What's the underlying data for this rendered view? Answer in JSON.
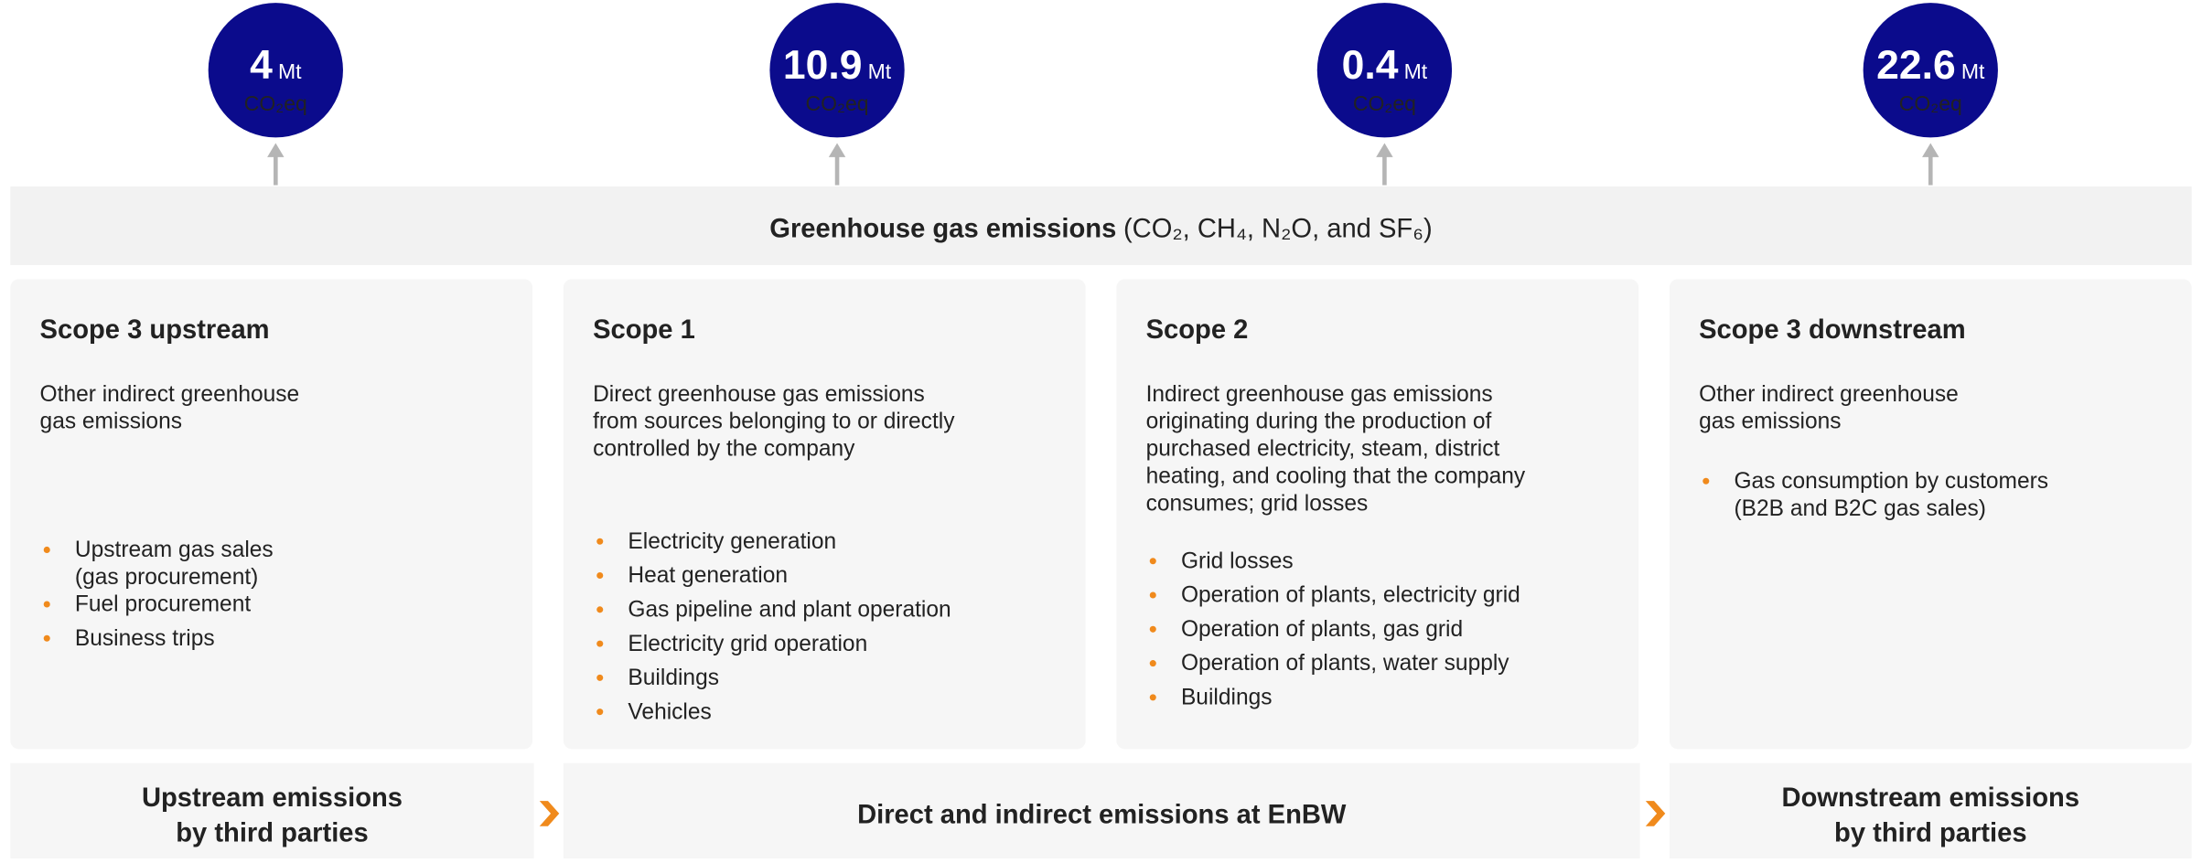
{
  "circles": [
    {
      "value": 4,
      "unit": "Mt",
      "label": "CO₂eq"
    },
    {
      "value": 10.9,
      "unit": "Mt",
      "label": "CO₂eq"
    },
    {
      "value": 0.4,
      "unit": "Mt",
      "label": "CO₂eq"
    },
    {
      "value": 22.6,
      "unit": "Mt",
      "label": "CO₂eq"
    }
  ],
  "banner": {
    "title": "Greenhouse gas emissions",
    "detail": "(CO₂, CH₄, N₂O, and SF₆)"
  },
  "scopes": [
    {
      "title": "Scope 3 upstream",
      "description": [
        "Other indirect greenhouse",
        "gas emissions"
      ],
      "bullets": [
        [
          "Upstream gas sales",
          "(gas procurement)"
        ],
        [
          "Fuel procurement"
        ],
        [
          "Business trips"
        ]
      ]
    },
    {
      "title": "Scope 1",
      "description": [
        "Direct greenhouse gas emissions",
        "from sources belonging to or directly",
        "controlled by the company"
      ],
      "bullets": [
        [
          "Electricity generation"
        ],
        [
          "Heat generation"
        ],
        [
          "Gas pipeline and plant operation"
        ],
        [
          "Electricity grid operation"
        ],
        [
          "Buildings"
        ],
        [
          "Vehicles"
        ]
      ]
    },
    {
      "title": "Scope 2",
      "description": [
        "Indirect greenhouse gas emissions",
        "originating during the production of",
        "purchased electricity, steam, district",
        "heating, and cooling that the company",
        "consumes; grid losses"
      ],
      "bullets": [
        [
          "Grid losses"
        ],
        [
          "Operation of plants, electricity grid"
        ],
        [
          "Operation of plants, gas grid"
        ],
        [
          "Operation of plants, water supply"
        ],
        [
          "Buildings"
        ]
      ]
    },
    {
      "title": "Scope 3 downstream",
      "description": [
        "Other indirect greenhouse",
        "gas emissions"
      ],
      "bullets": [
        [
          "Gas consumption by customers",
          "(B2B and B2C gas sales)"
        ]
      ]
    }
  ],
  "footer": [
    [
      "Upstream emissions",
      "by third parties"
    ],
    [
      "Direct and indirect emissions at EnBW"
    ],
    [
      "Downstream emissions",
      "by third parties"
    ]
  ]
}
